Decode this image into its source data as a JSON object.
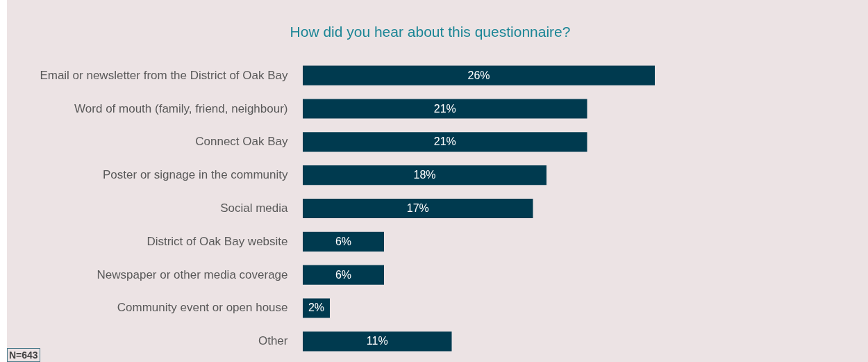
{
  "chart_data": {
    "type": "bar",
    "orientation": "horizontal",
    "title": "How did you hear about this questionnaire?",
    "categories": [
      "Email or newsletter from the District of Oak Bay",
      "Word of mouth (family, friend, neighbour)",
      "Connect Oak Bay",
      "Poster or signage in the community",
      "Social media",
      "District of Oak Bay website",
      "Newspaper or other media coverage",
      "Community event or open house",
      "Other"
    ],
    "values": [
      26,
      21,
      21,
      18,
      17,
      6,
      6,
      2,
      11
    ],
    "value_labels": [
      "26%",
      "21%",
      "21%",
      "18%",
      "17%",
      "6%",
      "6%",
      "2%",
      "11%"
    ],
    "color": "#003a4f",
    "annotations": [
      "N=643"
    ]
  }
}
